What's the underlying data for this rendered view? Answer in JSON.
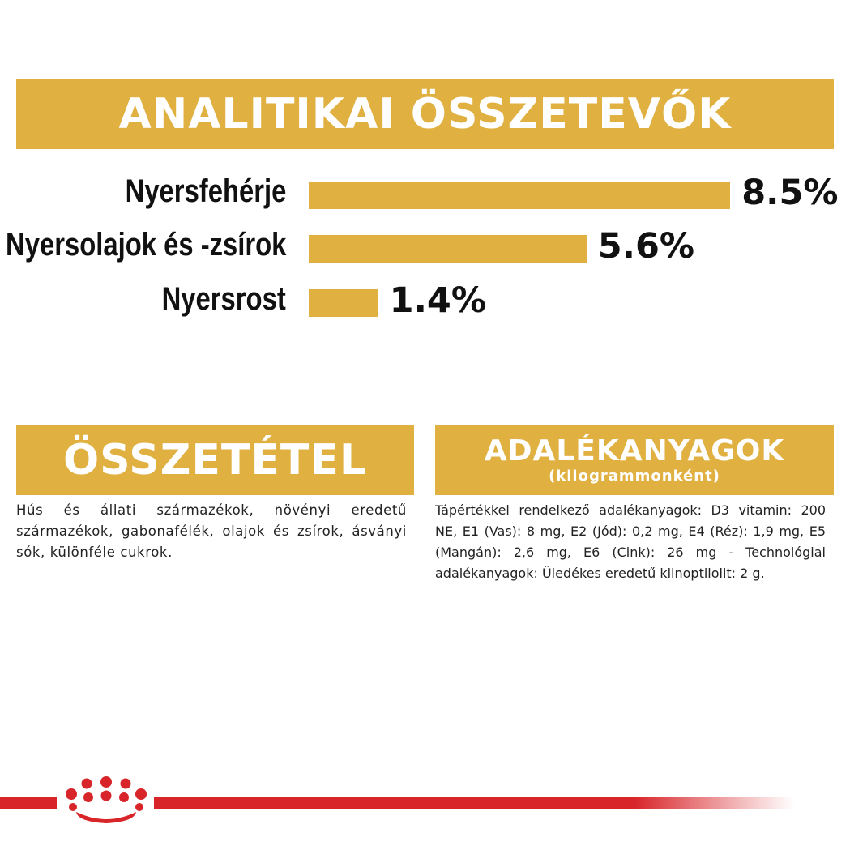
{
  "header": {
    "title": "ANALITIKAI ÖSSZETEVŐK"
  },
  "chart_data": {
    "type": "bar",
    "categories": [
      "Nyersfehérje",
      "Nyersolajok és -zsírok",
      "Nyersrost"
    ],
    "values": [
      8.5,
      5.6,
      1.4
    ],
    "value_labels": [
      "8.5%",
      "5.6%",
      "1.4%"
    ],
    "orientation": "horizontal",
    "color": "#e0b040"
  },
  "composition": {
    "title": "ÖSSZETÉTEL",
    "text": "Hús és állati származékok, növényi eredetű származékok, gabonafélék, olajok és zsírok, ásványi sók, különféle cukrok."
  },
  "additives": {
    "title": "ADALÉKANYAGOK",
    "subtitle": "(kilogrammonként)",
    "text": "Tápértékkel rendelkező adalékanyagok: D3 vitamin: 200 NE, E1 (Vas): 8 mg, E2 (Jód): 0,2 mg, E4 (Réz): 1,9 mg, E5 (Mangán): 2,6 mg, E6 (Cink): 26 mg - Technológiai adalékanyagok: Üledékes eredetű klinoptilolit: 2 g."
  },
  "colors": {
    "accent": "#e0b040",
    "brand_red": "#d8252a"
  },
  "footer": {
    "logo_icon": "royal-canin-crown-icon"
  }
}
